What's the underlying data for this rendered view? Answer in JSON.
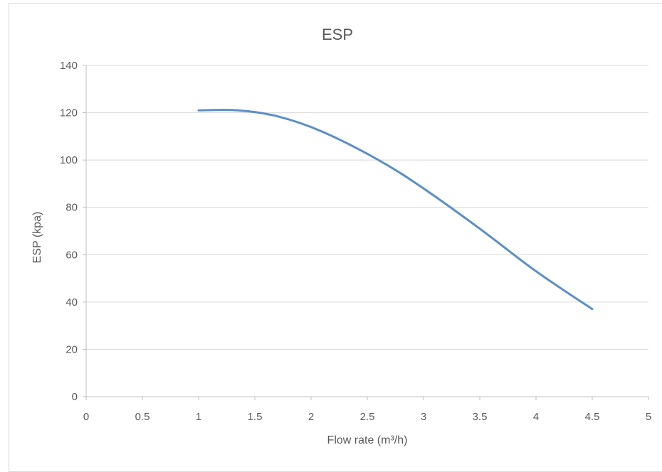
{
  "chart_data": {
    "type": "line",
    "title": "ESP",
    "xlabel": "Flow rate (m³/h)",
    "ylabel": "ESP (kpa)",
    "xlim": [
      0,
      5
    ],
    "ylim": [
      0,
      140
    ],
    "x_ticks": [
      "0",
      "0.5",
      "1",
      "1.5",
      "2",
      "2.5",
      "3",
      "3.5",
      "4",
      "4.5",
      "5"
    ],
    "y_ticks": [
      "0",
      "20",
      "40",
      "60",
      "80",
      "100",
      "120",
      "140"
    ],
    "grid": "horizontal",
    "legend": "none",
    "smooth": true,
    "series": [
      {
        "color": "#5b8ec9",
        "x": [
          1.0,
          1.35,
          1.7,
          2.1,
          2.6,
          3.0,
          3.5,
          4.0,
          4.5
        ],
        "y": [
          121,
          121,
          118.5,
          112,
          100,
          88,
          71,
          53,
          37
        ]
      }
    ]
  }
}
